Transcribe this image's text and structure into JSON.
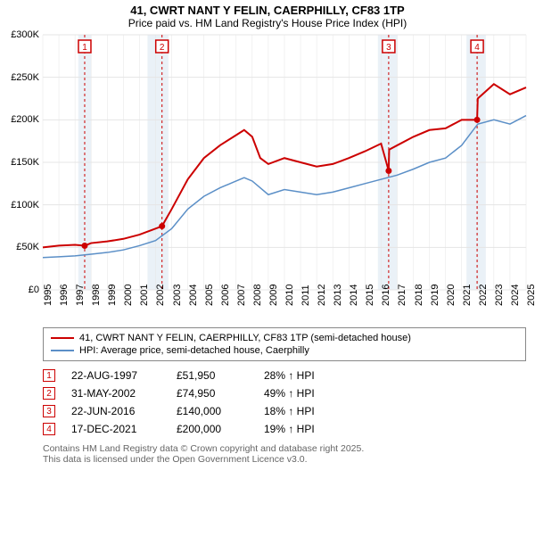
{
  "title": "41, CWRT NANT Y FELIN, CAERPHILLY, CF83 1TP",
  "subtitle": "Price paid vs. HM Land Registry's House Price Index (HPI)",
  "chart": {
    "type": "line",
    "ylim": [
      0,
      300000
    ],
    "ytick_step": 50000,
    "y_labels": [
      "£0",
      "£50K",
      "£100K",
      "£150K",
      "£200K",
      "£250K",
      "£300K"
    ],
    "xlim": [
      1995,
      2025
    ],
    "x_labels": [
      "1995",
      "1996",
      "1997",
      "1998",
      "1999",
      "2000",
      "2001",
      "2002",
      "2003",
      "2004",
      "2005",
      "2006",
      "2007",
      "2008",
      "2009",
      "2010",
      "2011",
      "2012",
      "2013",
      "2014",
      "2015",
      "2016",
      "2017",
      "2018",
      "2019",
      "2020",
      "2021",
      "2022",
      "2023",
      "2024",
      "2025"
    ],
    "background_color": "#ffffff",
    "grid_color": "#e5e5e5",
    "band_color": "#d6e4f0",
    "band_opacity": 0.5,
    "marker_line_color": "#cc0000",
    "marker_line_dash": "3,3",
    "series": [
      {
        "name": "41, CWRT NANT Y FELIN, CAERPHILLY, CF83 1TP (semi-detached house)",
        "color": "#cc0000",
        "width": 2,
        "points": [
          [
            1995,
            50000
          ],
          [
            1996,
            52000
          ],
          [
            1997,
            53000
          ],
          [
            1997.6,
            51950
          ],
          [
            1998,
            55000
          ],
          [
            1999,
            57000
          ],
          [
            2000,
            60000
          ],
          [
            2001,
            65000
          ],
          [
            2002,
            72000
          ],
          [
            2002.4,
            74950
          ],
          [
            2003,
            95000
          ],
          [
            2004,
            130000
          ],
          [
            2005,
            155000
          ],
          [
            2006,
            170000
          ],
          [
            2007,
            182000
          ],
          [
            2007.5,
            188000
          ],
          [
            2008,
            180000
          ],
          [
            2008.5,
            155000
          ],
          [
            2009,
            148000
          ],
          [
            2010,
            155000
          ],
          [
            2011,
            150000
          ],
          [
            2012,
            145000
          ],
          [
            2013,
            148000
          ],
          [
            2014,
            155000
          ],
          [
            2015,
            163000
          ],
          [
            2016,
            172000
          ],
          [
            2016.47,
            140000
          ],
          [
            2016.5,
            165000
          ],
          [
            2017,
            170000
          ],
          [
            2018,
            180000
          ],
          [
            2019,
            188000
          ],
          [
            2020,
            190000
          ],
          [
            2021,
            200000
          ],
          [
            2021.96,
            200000
          ],
          [
            2022,
            225000
          ],
          [
            2023,
            242000
          ],
          [
            2024,
            230000
          ],
          [
            2025,
            238000
          ]
        ],
        "markers": [
          {
            "x": 1997.6,
            "y": 51950,
            "n": "1"
          },
          {
            "x": 2002.4,
            "y": 74950,
            "n": "2"
          },
          {
            "x": 2016.47,
            "y": 140000,
            "n": "3"
          },
          {
            "x": 2021.96,
            "y": 200000,
            "n": "4"
          }
        ]
      },
      {
        "name": "HPI: Average price, semi-detached house, Caerphilly",
        "color": "#5b8fc7",
        "width": 1.5,
        "points": [
          [
            1995,
            38000
          ],
          [
            1996,
            39000
          ],
          [
            1997,
            40000
          ],
          [
            1998,
            42000
          ],
          [
            1999,
            44000
          ],
          [
            2000,
            47000
          ],
          [
            2001,
            52000
          ],
          [
            2002,
            58000
          ],
          [
            2003,
            72000
          ],
          [
            2004,
            95000
          ],
          [
            2005,
            110000
          ],
          [
            2006,
            120000
          ],
          [
            2007,
            128000
          ],
          [
            2007.5,
            132000
          ],
          [
            2008,
            128000
          ],
          [
            2009,
            112000
          ],
          [
            2010,
            118000
          ],
          [
            2011,
            115000
          ],
          [
            2012,
            112000
          ],
          [
            2013,
            115000
          ],
          [
            2014,
            120000
          ],
          [
            2015,
            125000
          ],
          [
            2016,
            130000
          ],
          [
            2017,
            135000
          ],
          [
            2018,
            142000
          ],
          [
            2019,
            150000
          ],
          [
            2020,
            155000
          ],
          [
            2021,
            170000
          ],
          [
            2022,
            195000
          ],
          [
            2023,
            200000
          ],
          [
            2024,
            195000
          ],
          [
            2025,
            205000
          ]
        ]
      }
    ],
    "bands": [
      [
        1997.2,
        1998
      ],
      [
        2001.5,
        2002.8
      ],
      [
        2015.8,
        2017
      ],
      [
        2021.3,
        2022.5
      ]
    ]
  },
  "legend": {
    "rows": [
      {
        "color": "#cc0000",
        "label": "41, CWRT NANT Y FELIN, CAERPHILLY, CF83 1TP (semi-detached house)"
      },
      {
        "color": "#5b8fc7",
        "label": "HPI: Average price, semi-detached house, Caerphilly"
      }
    ]
  },
  "sales": [
    {
      "n": "1",
      "date": "22-AUG-1997",
      "price": "£51,950",
      "delta": "28% ↑ HPI"
    },
    {
      "n": "2",
      "date": "31-MAY-2002",
      "price": "£74,950",
      "delta": "49% ↑ HPI"
    },
    {
      "n": "3",
      "date": "22-JUN-2016",
      "price": "£140,000",
      "delta": "18% ↑ HPI"
    },
    {
      "n": "4",
      "date": "17-DEC-2021",
      "price": "£200,000",
      "delta": "19% ↑ HPI"
    }
  ],
  "footer_line1": "Contains HM Land Registry data © Crown copyright and database right 2025.",
  "footer_line2": "This data is licensed under the Open Government Licence v3.0."
}
